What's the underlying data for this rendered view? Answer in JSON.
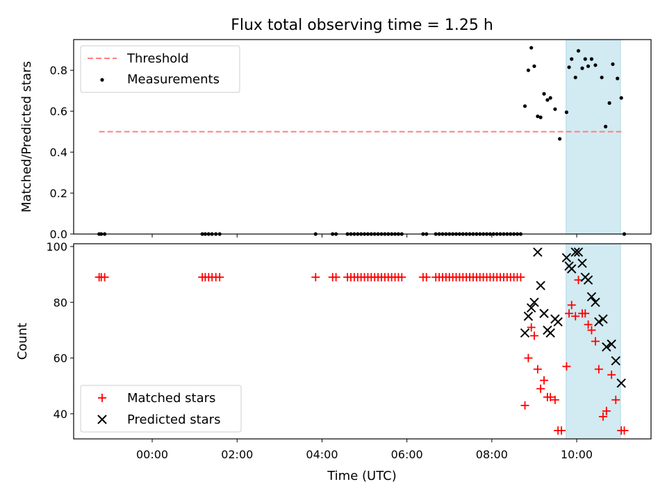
{
  "title": "Flux total observing time = 1.25 h",
  "colors": {
    "threshold": "#ff7f7f",
    "measurement": "#000000",
    "matched": "#ff0000",
    "predicted": "#000000",
    "shade": "#add8e6"
  },
  "chart_data": [
    {
      "type": "scatter",
      "xlabel": "",
      "ylabel": "Matched/Predicted stars",
      "x_unit": "hours since 00:00 UTC",
      "xlim": [
        -1.85,
        11.75
      ],
      "ylim": [
        0,
        0.95
      ],
      "yticks": [
        "0.0",
        "0.2",
        "0.4",
        "0.6",
        "0.8"
      ],
      "ytick_values": [
        0,
        0.2,
        0.4,
        0.6,
        0.8
      ],
      "grid": false,
      "legend_position": "upper-left",
      "legend": [
        "Threshold",
        "Measurements"
      ],
      "shaded_region": [
        9.75,
        11.03
      ],
      "threshold": {
        "name": "Threshold",
        "value": 0.5,
        "x_start": -1.25,
        "x_end": 11.05,
        "style": "dashed"
      },
      "series": [
        {
          "name": "Measurements",
          "points": [
            [
              -1.25,
              0
            ],
            [
              -1.2,
              0
            ],
            [
              -1.12,
              0
            ],
            [
              1.18,
              0
            ],
            [
              1.25,
              0
            ],
            [
              1.33,
              0
            ],
            [
              1.41,
              0
            ],
            [
              1.5,
              0
            ],
            [
              1.59,
              0
            ],
            [
              3.85,
              0
            ],
            [
              4.25,
              0
            ],
            [
              4.33,
              0
            ],
            [
              4.6,
              0
            ],
            [
              4.68,
              0
            ],
            [
              4.76,
              0
            ],
            [
              4.84,
              0
            ],
            [
              4.92,
              0
            ],
            [
              5.0,
              0
            ],
            [
              5.08,
              0
            ],
            [
              5.16,
              0
            ],
            [
              5.24,
              0
            ],
            [
              5.32,
              0
            ],
            [
              5.4,
              0
            ],
            [
              5.48,
              0
            ],
            [
              5.56,
              0
            ],
            [
              5.64,
              0
            ],
            [
              5.72,
              0
            ],
            [
              5.8,
              0
            ],
            [
              5.88,
              0
            ],
            [
              6.38,
              0
            ],
            [
              6.46,
              0
            ],
            [
              6.68,
              0
            ],
            [
              6.76,
              0
            ],
            [
              6.84,
              0
            ],
            [
              6.92,
              0
            ],
            [
              7.0,
              0
            ],
            [
              7.08,
              0
            ],
            [
              7.16,
              0
            ],
            [
              7.24,
              0
            ],
            [
              7.32,
              0
            ],
            [
              7.4,
              0
            ],
            [
              7.48,
              0
            ],
            [
              7.56,
              0
            ],
            [
              7.64,
              0
            ],
            [
              7.72,
              0
            ],
            [
              7.8,
              0
            ],
            [
              7.88,
              0
            ],
            [
              7.96,
              0
            ],
            [
              8.04,
              0
            ],
            [
              8.12,
              0
            ],
            [
              8.2,
              0
            ],
            [
              8.28,
              0
            ],
            [
              8.36,
              0
            ],
            [
              8.44,
              0
            ],
            [
              8.52,
              0
            ],
            [
              8.6,
              0
            ],
            [
              8.68,
              0
            ],
            [
              11.12,
              0
            ],
            [
              8.78,
              0.625
            ],
            [
              8.86,
              0.8
            ],
            [
              8.93,
              0.91
            ],
            [
              9.0,
              0.82
            ],
            [
              9.08,
              0.575
            ],
            [
              9.15,
              0.57
            ],
            [
              9.23,
              0.685
            ],
            [
              9.31,
              0.655
            ],
            [
              9.38,
              0.665
            ],
            [
              9.49,
              0.61
            ],
            [
              9.6,
              0.465
            ],
            [
              9.76,
              0.595
            ],
            [
              9.82,
              0.815
            ],
            [
              9.88,
              0.855
            ],
            [
              9.97,
              0.765
            ],
            [
              10.04,
              0.895
            ],
            [
              10.13,
              0.81
            ],
            [
              10.2,
              0.855
            ],
            [
              10.27,
              0.82
            ],
            [
              10.35,
              0.855
            ],
            [
              10.44,
              0.825
            ],
            [
              10.59,
              0.765
            ],
            [
              10.68,
              0.525
            ],
            [
              10.77,
              0.64
            ],
            [
              10.85,
              0.83
            ],
            [
              10.96,
              0.76
            ],
            [
              11.05,
              0.665
            ]
          ]
        }
      ]
    },
    {
      "type": "scatter",
      "xlabel": "Time (UTC)",
      "ylabel": "Count",
      "x_unit": "hours since 00:00 UTC",
      "xlim": [
        -1.85,
        11.75
      ],
      "ylim": [
        31,
        101
      ],
      "yticks": [
        "40",
        "60",
        "80",
        "100"
      ],
      "ytick_values": [
        40,
        60,
        80,
        100
      ],
      "xticks": [
        "00:00",
        "02:00",
        "04:00",
        "06:00",
        "08:00",
        "10:00"
      ],
      "xtick_values": [
        0,
        2,
        4,
        6,
        8,
        10
      ],
      "grid": false,
      "legend_position": "lower-left",
      "legend": [
        "Matched stars",
        "Predicted stars"
      ],
      "shaded_region": [
        9.75,
        11.03
      ],
      "series": [
        {
          "name": "Matched stars",
          "marker": "plus",
          "points": [
            [
              -1.25,
              89
            ],
            [
              -1.2,
              89
            ],
            [
              -1.12,
              89
            ],
            [
              1.18,
              89
            ],
            [
              1.25,
              89
            ],
            [
              1.33,
              89
            ],
            [
              1.41,
              89
            ],
            [
              1.5,
              89
            ],
            [
              1.59,
              89
            ],
            [
              3.85,
              89
            ],
            [
              4.25,
              89
            ],
            [
              4.33,
              89
            ],
            [
              4.6,
              89
            ],
            [
              4.68,
              89
            ],
            [
              4.76,
              89
            ],
            [
              4.84,
              89
            ],
            [
              4.92,
              89
            ],
            [
              5.0,
              89
            ],
            [
              5.08,
              89
            ],
            [
              5.16,
              89
            ],
            [
              5.24,
              89
            ],
            [
              5.32,
              89
            ],
            [
              5.4,
              89
            ],
            [
              5.48,
              89
            ],
            [
              5.56,
              89
            ],
            [
              5.64,
              89
            ],
            [
              5.72,
              89
            ],
            [
              5.8,
              89
            ],
            [
              5.88,
              89
            ],
            [
              6.38,
              89
            ],
            [
              6.46,
              89
            ],
            [
              6.68,
              89
            ],
            [
              6.76,
              89
            ],
            [
              6.84,
              89
            ],
            [
              6.92,
              89
            ],
            [
              7.0,
              89
            ],
            [
              7.08,
              89
            ],
            [
              7.16,
              89
            ],
            [
              7.24,
              89
            ],
            [
              7.32,
              89
            ],
            [
              7.4,
              89
            ],
            [
              7.48,
              89
            ],
            [
              7.56,
              89
            ],
            [
              7.64,
              89
            ],
            [
              7.72,
              89
            ],
            [
              7.8,
              89
            ],
            [
              7.88,
              89
            ],
            [
              7.96,
              89
            ],
            [
              8.04,
              89
            ],
            [
              8.12,
              89
            ],
            [
              8.2,
              89
            ],
            [
              8.28,
              89
            ],
            [
              8.36,
              89
            ],
            [
              8.44,
              89
            ],
            [
              8.52,
              89
            ],
            [
              8.6,
              89
            ],
            [
              8.68,
              89
            ],
            [
              8.78,
              43
            ],
            [
              8.86,
              60
            ],
            [
              8.93,
              71
            ],
            [
              9.0,
              68
            ],
            [
              9.08,
              56
            ],
            [
              9.15,
              49
            ],
            [
              9.23,
              52
            ],
            [
              9.31,
              46
            ],
            [
              9.38,
              46
            ],
            [
              9.49,
              45
            ],
            [
              9.56,
              34
            ],
            [
              9.64,
              34
            ],
            [
              9.76,
              57
            ],
            [
              9.82,
              76
            ],
            [
              9.88,
              79
            ],
            [
              9.97,
              75
            ],
            [
              10.04,
              88
            ],
            [
              10.13,
              76
            ],
            [
              10.2,
              76
            ],
            [
              10.27,
              72
            ],
            [
              10.35,
              70
            ],
            [
              10.44,
              66
            ],
            [
              10.52,
              56
            ],
            [
              10.62,
              39
            ],
            [
              10.7,
              41
            ],
            [
              10.82,
              54
            ],
            [
              10.92,
              45
            ],
            [
              11.05,
              34
            ],
            [
              11.12,
              34
            ]
          ]
        },
        {
          "name": "Predicted stars",
          "marker": "x",
          "points": [
            [
              8.78,
              69
            ],
            [
              8.86,
              75
            ],
            [
              8.93,
              78
            ],
            [
              9.0,
              80
            ],
            [
              9.08,
              98
            ],
            [
              9.15,
              86
            ],
            [
              9.23,
              76
            ],
            [
              9.31,
              70
            ],
            [
              9.38,
              69
            ],
            [
              9.49,
              74
            ],
            [
              9.56,
              73
            ],
            [
              9.76,
              96
            ],
            [
              9.82,
              93
            ],
            [
              9.88,
              92
            ],
            [
              9.97,
              98
            ],
            [
              10.04,
              98
            ],
            [
              10.13,
              94
            ],
            [
              10.2,
              89
            ],
            [
              10.27,
              88
            ],
            [
              10.35,
              82
            ],
            [
              10.44,
              80
            ],
            [
              10.52,
              73
            ],
            [
              10.62,
              74
            ],
            [
              10.7,
              64
            ],
            [
              10.82,
              65
            ],
            [
              10.92,
              59
            ],
            [
              11.05,
              51
            ]
          ]
        }
      ]
    }
  ]
}
